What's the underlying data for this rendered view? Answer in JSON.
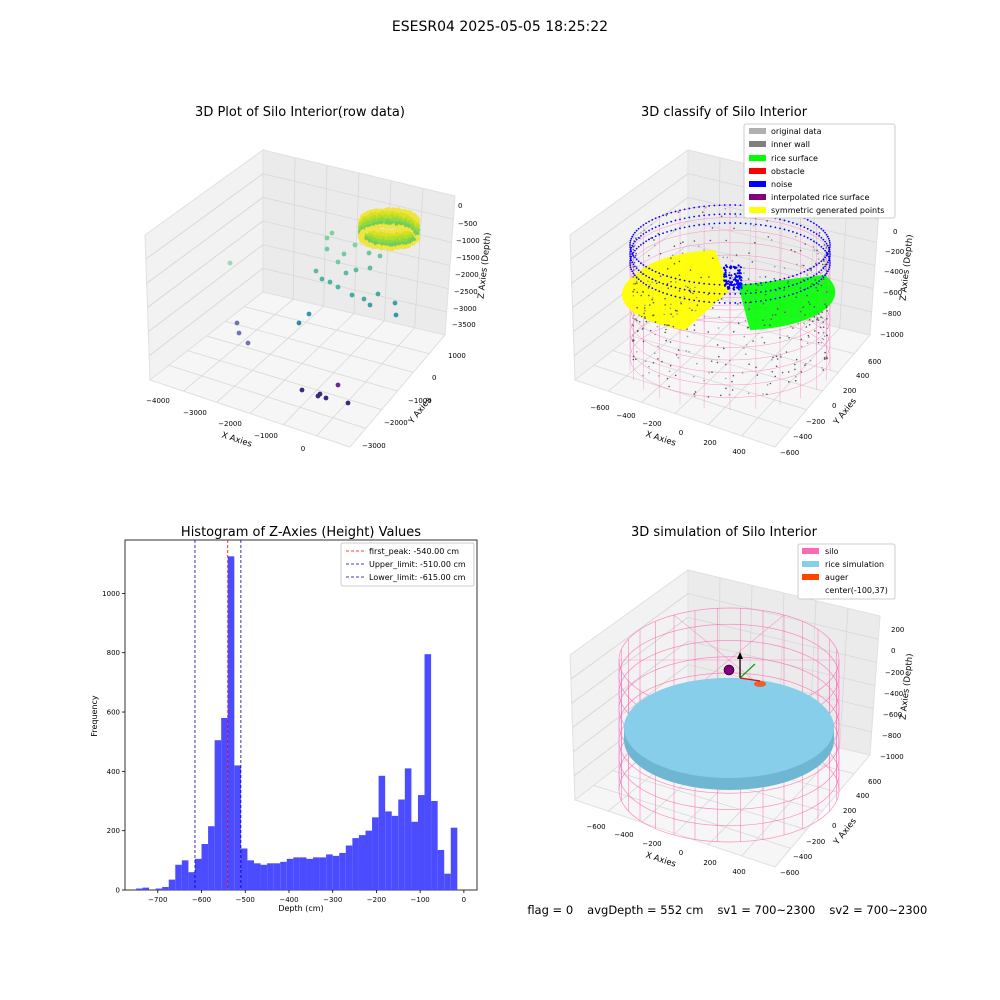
{
  "suptitle": "ESESR04 2025-05-05 18:25:22",
  "status": {
    "flag": "flag = 0",
    "avg_depth": "avgDepth = 552 cm",
    "sv1": "sv1 = 700~2300",
    "sv2": "sv2 = 700~2300"
  },
  "colors": {
    "hist_bar": "#4b4bff",
    "first_peak": "#ff0000",
    "limit": "#0000aa",
    "silo": "#ff69b4",
    "rice_simulation": "#87ceeb",
    "auger": "#ff4500",
    "noise": "#0000ff",
    "rice_surface": "#00ff00",
    "symmetric": "#ffff00",
    "inner_wall": "#808080",
    "original": "#b0b0b0",
    "obstacle": "#ff0000",
    "interpolated": "#800080"
  },
  "chart_data": [
    {
      "type": "scatter",
      "title": "3D Plot of Silo Interior(row data)",
      "xlabel": "X Axies",
      "ylabel": "Y Axies",
      "zlabel": "Z Axies (Depth)",
      "x_ticks": [
        "−4000",
        "−3000",
        "−2000",
        "−1000",
        "0"
      ],
      "y_ticks": [
        "1000",
        "0",
        "−1000",
        "−2000",
        "−3000"
      ],
      "z_ticks": [
        "0",
        "−500",
        "−1000",
        "−1500",
        "−2000",
        "−2500",
        "−3000",
        "−3500"
      ]
    },
    {
      "type": "scatter",
      "title": "3D classify of Silo Interior",
      "xlabel": "X Axies",
      "ylabel": "Y Axies",
      "zlabel": "Z Axies (Depth)",
      "x_ticks": [
        "−600",
        "−400",
        "−200",
        "0",
        "200",
        "400"
      ],
      "y_ticks": [
        "600",
        "400",
        "200",
        "0",
        "−200",
        "−400",
        "−600"
      ],
      "z_ticks": [
        "0",
        "−200",
        "−400",
        "−600",
        "−800",
        "−1000"
      ],
      "legend": [
        "original data",
        "inner wall",
        "rice surface",
        "obstacle",
        "noise",
        "interpolated rice surface",
        "symmetric generated points"
      ],
      "legend_placement": "top-right"
    },
    {
      "type": "bar",
      "title": "Histogram of Z-Axies (Height) Values",
      "xlabel": "Depth (cm)",
      "ylabel": "Frequency",
      "x_ticks": [
        -700,
        -600,
        -500,
        -400,
        -300,
        -200,
        -100,
        0
      ],
      "y_ticks": [
        0,
        200,
        400,
        600,
        800,
        1000
      ],
      "xlim": [
        -775,
        30
      ],
      "ylim": [
        0,
        1180
      ],
      "bin_start": -750,
      "bin_width": 15,
      "values": [
        5,
        8,
        0,
        5,
        10,
        35,
        85,
        100,
        60,
        105,
        155,
        215,
        505,
        580,
        1125,
        420,
        140,
        100,
        90,
        85,
        90,
        90,
        95,
        105,
        110,
        110,
        105,
        110,
        110,
        120,
        115,
        125,
        150,
        175,
        185,
        200,
        245,
        385,
        265,
        250,
        305,
        410,
        230,
        320,
        795,
        300,
        135,
        55,
        210
      ],
      "lines": [
        {
          "label": "first_peak: -540.00 cm",
          "x": -540,
          "style": "dashed",
          "color": "red"
        },
        {
          "label": "Upper_limit: -510.00 cm",
          "x": -510,
          "style": "dashed",
          "color": "navy"
        },
        {
          "label": "Lower_limit: -615.00 cm",
          "x": -615,
          "style": "dashed",
          "color": "navy"
        }
      ],
      "legend_placement": "top-right"
    },
    {
      "type": "scatter",
      "title": "3D simulation of Silo Interior",
      "xlabel": "X Axies",
      "ylabel": "Y Axies",
      "zlabel": "Z Axies (Depth)",
      "x_ticks": [
        "−600",
        "−400",
        "−200",
        "0",
        "200",
        "400"
      ],
      "y_ticks": [
        "600",
        "400",
        "200",
        "0",
        "−200",
        "−400",
        "−600"
      ],
      "z_ticks": [
        "200",
        "0",
        "−200",
        "−400",
        "−600",
        "−800",
        "−1000"
      ],
      "legend": [
        "silo",
        "rice simulation",
        "auger",
        "center(-100,37)"
      ],
      "legend_placement": "top-right"
    }
  ]
}
